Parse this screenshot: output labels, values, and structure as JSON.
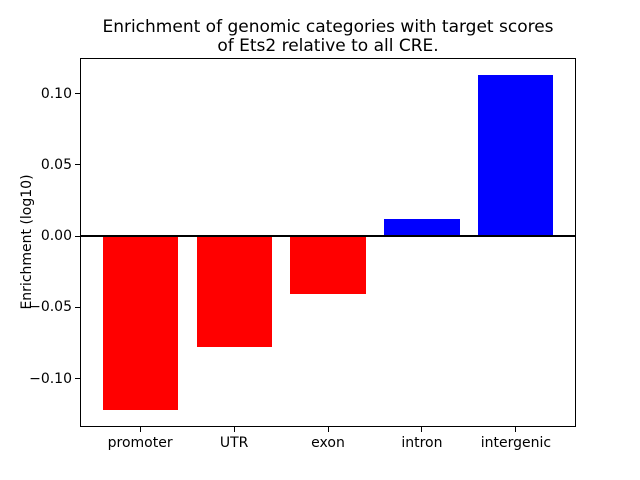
{
  "figure": {
    "title_line1": "Enrichment of genomic categories with target scores",
    "title_line2": "of Ets2 relative to all CRE."
  },
  "chart_data": {
    "type": "bar",
    "title": "Enrichment of genomic categories with target scores\nof Ets2 relative to all CRE.",
    "xlabel": "",
    "ylabel": "Enrichment (log10)",
    "categories": [
      "promoter",
      "UTR",
      "exon",
      "intron",
      "intergenic"
    ],
    "values": [
      -0.122,
      -0.078,
      -0.041,
      0.012,
      0.113
    ],
    "bar_colors": [
      "#ff0000",
      "#ff0000",
      "#ff0000",
      "#0000ff",
      "#0000ff"
    ],
    "negative_color": "#ff0000",
    "positive_color": "#0000ff",
    "bar_width": 0.8,
    "yticks": [
      0.1,
      0.05,
      0.0,
      -0.05,
      -0.1
    ],
    "ytick_labels": [
      "0.10",
      "0.05",
      "0.00",
      "−0.05",
      "−0.10"
    ],
    "ylim": [
      -0.134,
      0.125
    ],
    "xlim": [
      -0.64,
      4.64
    ],
    "zero_line": true,
    "grid": false,
    "legend": false,
    "plot_background": "#ffffff",
    "axis_color": "#000000"
  }
}
